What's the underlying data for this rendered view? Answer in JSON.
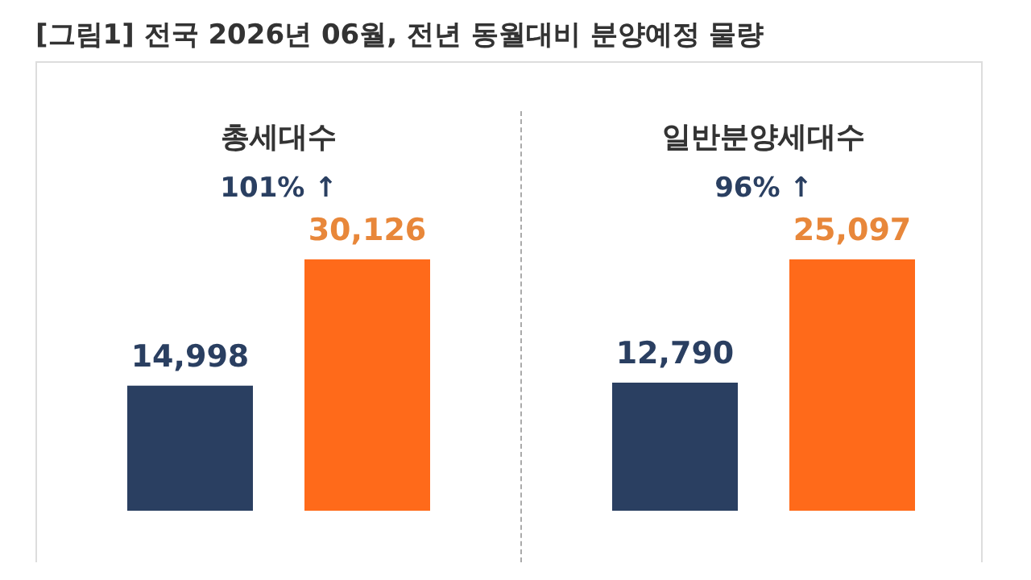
{
  "chart_data": [
    {
      "type": "bar",
      "title": "총세대수",
      "subtitle": "101% ↑",
      "annotations": [
        "[그림1] 전국 2026년 06월, 전년 동월대비 분양예정 물량"
      ],
      "categories": [
        null,
        null
      ],
      "values": [
        14998,
        30126
      ],
      "value_labels": [
        "14,998",
        "30,126"
      ],
      "colors": [
        "#2a3f61",
        "#ff6a1a"
      ]
    },
    {
      "type": "bar",
      "title": "일반분양세대수",
      "subtitle": "96% ↑",
      "categories": [
        null,
        null
      ],
      "values": [
        12790,
        25097
      ],
      "value_labels": [
        "12,790",
        "25,097"
      ],
      "colors": [
        "#2a3f61",
        "#ff6a1a"
      ]
    }
  ]
}
